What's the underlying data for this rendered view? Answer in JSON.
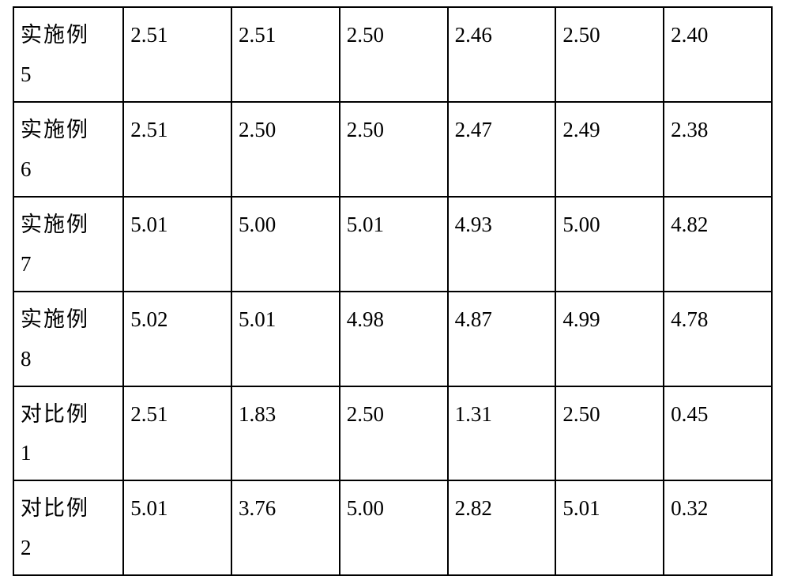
{
  "table": {
    "type": "table",
    "border_color": "#000000",
    "background_color": "#ffffff",
    "text_color": "#000000",
    "font_family": "SimSun",
    "cell_fontsize": 27,
    "border_width": 2,
    "columns_count": 7,
    "rows": [
      {
        "label_line1": "实施例",
        "label_line2": "5",
        "c1": "2.51",
        "c2": "2.51",
        "c3": "2.50",
        "c4": "2.46",
        "c5": "2.50",
        "c6": "2.40"
      },
      {
        "label_line1": "实施例",
        "label_line2": "6",
        "c1": "2.51",
        "c2": "2.50",
        "c3": "2.50",
        "c4": "2.47",
        "c5": "2.49",
        "c6": "2.38"
      },
      {
        "label_line1": "实施例",
        "label_line2": "7",
        "c1": "5.01",
        "c2": "5.00",
        "c3": "5.01",
        "c4": "4.93",
        "c5": "5.00",
        "c6": "4.82"
      },
      {
        "label_line1": "实施例",
        "label_line2": "8",
        "c1": "5.02",
        "c2": "5.01",
        "c3": "4.98",
        "c4": "4.87",
        "c5": "4.99",
        "c6": "4.78"
      },
      {
        "label_line1": "对比例",
        "label_line2": "1",
        "c1": "2.51",
        "c2": "1.83",
        "c3": "2.50",
        "c4": "1.31",
        "c5": "2.50",
        "c6": "0.45"
      },
      {
        "label_line1": "对比例",
        "label_line2": "2",
        "c1": "5.01",
        "c2": "3.76",
        "c3": "5.00",
        "c4": "2.82",
        "c5": "5.01",
        "c6": "0.32"
      }
    ]
  }
}
